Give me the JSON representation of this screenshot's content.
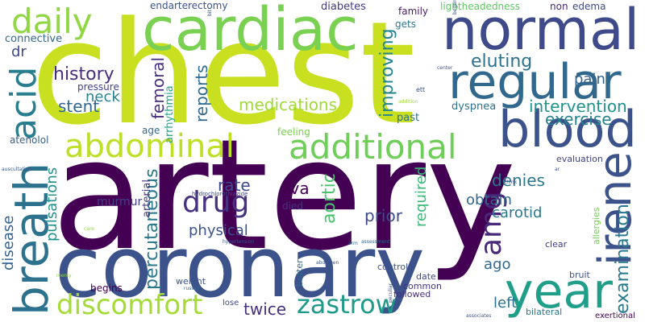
{
  "words": [
    {
      "text": "chest",
      "color": "#c8e020"
    },
    {
      "text": "artery",
      "color": "#440154"
    },
    {
      "text": "coronary",
      "color": "#3b528b"
    },
    {
      "text": "cardiac",
      "color": "#7ad151"
    },
    {
      "text": "normal",
      "color": "#3e4a89"
    },
    {
      "text": "regular",
      "color": "#31688e"
    },
    {
      "text": "blood",
      "color": "#3b528b"
    },
    {
      "text": "year",
      "color": "#1f9e89"
    },
    {
      "text": "daily",
      "color": "#90d743"
    },
    {
      "text": "breath",
      "color": "#2c728e"
    },
    {
      "text": "acid",
      "color": "#287d8e"
    },
    {
      "text": "abdominal",
      "color": "#bddf26"
    },
    {
      "text": "additional",
      "color": "#6ece58"
    },
    {
      "text": "discomfort",
      "color": "#a5db36"
    },
    {
      "text": "zastrow",
      "color": "#1f9a8a"
    },
    {
      "text": "irene",
      "color": "#3b528b"
    },
    {
      "text": "drug",
      "color": "#46327e"
    },
    {
      "text": "amg",
      "color": "#482878"
    },
    {
      "text": "examination",
      "color": "#2a788e"
    },
    {
      "text": "improving",
      "color": "#25858e"
    },
    {
      "text": "eluting",
      "color": "#2c728e"
    },
    {
      "text": "history",
      "color": "#472d7b"
    },
    {
      "text": "medications",
      "color": "#a0da39"
    },
    {
      "text": "intervention",
      "color": "#21918c"
    },
    {
      "text": "exercise",
      "color": "#26828e"
    },
    {
      "text": "stent",
      "color": "#31688e"
    },
    {
      "text": "neck",
      "color": "#26828e"
    },
    {
      "text": "pain",
      "color": "#33638d"
    },
    {
      "text": "rate",
      "color": "#3e4a89"
    },
    {
      "text": "physical",
      "color": "#3b528b"
    },
    {
      "text": "percutaneous",
      "color": "#2a788e"
    },
    {
      "text": "reports",
      "color": "#30698e"
    },
    {
      "text": "femoral",
      "color": "#472f7d"
    },
    {
      "text": "iva",
      "color": "#440154"
    },
    {
      "text": "denies",
      "color": "#2a788e"
    },
    {
      "text": "obtain",
      "color": "#31688e"
    },
    {
      "text": "carotid",
      "color": "#2a788e"
    },
    {
      "text": "prior",
      "color": "#3e4a89"
    },
    {
      "text": "required",
      "color": "#38b977"
    },
    {
      "text": "aortic",
      "color": "#4ac16d"
    },
    {
      "text": "twice",
      "color": "#46327e"
    },
    {
      "text": "left",
      "color": "#2c728e"
    },
    {
      "text": "ago",
      "color": "#31688e"
    },
    {
      "text": "disease",
      "color": "#34608d"
    },
    {
      "text": "pulsations",
      "color": "#21918c"
    },
    {
      "text": "murmur",
      "color": "#433e85"
    },
    {
      "text": "arterial",
      "color": "#443a83"
    },
    {
      "text": "dr",
      "color": "#3e4a89"
    },
    {
      "text": "connective",
      "color": "#31688e"
    },
    {
      "text": "pressure",
      "color": "#414487"
    },
    {
      "text": "arrhythmia",
      "color": "#20a486"
    },
    {
      "text": "age",
      "color": "#31688e"
    },
    {
      "text": "endarterectomy",
      "color": "#3b528b"
    },
    {
      "text": "diabetes",
      "color": "#443a83"
    },
    {
      "text": "family",
      "color": "#481c6e"
    },
    {
      "text": "gets",
      "color": "#2a788e"
    },
    {
      "text": "lightheadedness",
      "color": "#5ec962"
    },
    {
      "text": "non",
      "color": "#482878"
    },
    {
      "text": "edema",
      "color": "#3e4a89"
    },
    {
      "text": "dyspnea",
      "color": "#2c728e"
    },
    {
      "text": "past",
      "color": "#2e6e8e"
    },
    {
      "text": "feeling",
      "color": "#7ad151"
    },
    {
      "text": "atenolol",
      "color": "#355f8d"
    },
    {
      "text": "evaluation",
      "color": "#414487"
    },
    {
      "text": "weight",
      "color": "#39568c"
    },
    {
      "text": "begins",
      "color": "#440154"
    },
    {
      "text": "died",
      "color": "#46337e"
    },
    {
      "text": "date",
      "color": "#3f4889"
    },
    {
      "text": "control",
      "color": "#3b528b"
    },
    {
      "text": "common",
      "color": "#453581"
    },
    {
      "text": "followed",
      "color": "#472d7b"
    },
    {
      "text": "clear",
      "color": "#424086"
    },
    {
      "text": "bruit",
      "color": "#3b528b"
    },
    {
      "text": "allergies",
      "color": "#73d056"
    },
    {
      "text": "bilateral",
      "color": "#2a788e"
    },
    {
      "text": "exertional",
      "color": "#440154"
    },
    {
      "text": "better",
      "color": "#31688e"
    },
    {
      "text": "lose",
      "color": "#3e4a89"
    },
    {
      "text": "hydrochlorothiazide",
      "color": "#3e4a89"
    },
    {
      "text": "ett",
      "color": "#3b528b"
    },
    {
      "text": "center",
      "color": "#3b528b"
    },
    {
      "text": "addition",
      "color": "#9fda3a"
    },
    {
      "text": "think",
      "color": "#3b528b"
    },
    {
      "text": "ar",
      "color": "#3b528b"
    },
    {
      "text": "assessment",
      "color": "#31688e"
    },
    {
      "text": "abdomen",
      "color": "#3b528b"
    },
    {
      "text": "hypertension",
      "color": "#3b528b"
    },
    {
      "text": "russell",
      "color": "#31688e"
    },
    {
      "text": "peculiar",
      "color": "#3b528b"
    },
    {
      "text": "associates",
      "color": "#3b528b"
    },
    {
      "text": "auscultation",
      "color": "#39558c"
    },
    {
      "text": "arm",
      "color": "#31688e"
    },
    {
      "text": "began",
      "color": "#3b528b"
    },
    {
      "text": "care",
      "color": "#8fd744"
    },
    {
      "text": "mercy",
      "color": "#8fd744"
    },
    {
      "text": "bit",
      "color": "#3b528b"
    }
  ]
}
